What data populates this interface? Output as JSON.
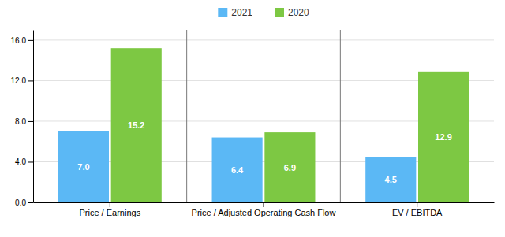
{
  "chart_data": {
    "type": "bar",
    "categories": [
      "Price / Earnings",
      "Price / Adjusted Operating Cash Flow",
      "EV / EBITDA"
    ],
    "series": [
      {
        "name": "2021",
        "color": "#5BB8F5",
        "values": [
          7.0,
          6.4,
          4.5
        ],
        "value_labels": [
          "7.0",
          "6.4",
          "4.5"
        ]
      },
      {
        "name": "2020",
        "color": "#7DC843",
        "values": [
          15.2,
          6.9,
          12.9
        ],
        "value_labels": [
          "15.2",
          "6.9",
          "12.9"
        ]
      }
    ],
    "ylim": [
      0,
      17
    ],
    "yticks": [
      {
        "value": 0.0,
        "label": "0.0"
      },
      {
        "value": 4.0,
        "label": "4.0"
      },
      {
        "value": 8.0,
        "label": "8.0"
      },
      {
        "value": 12.0,
        "label": "12.0"
      },
      {
        "value": 16.0,
        "label": "16.0"
      }
    ],
    "grid": true,
    "legend": "top",
    "data_labels": true
  }
}
